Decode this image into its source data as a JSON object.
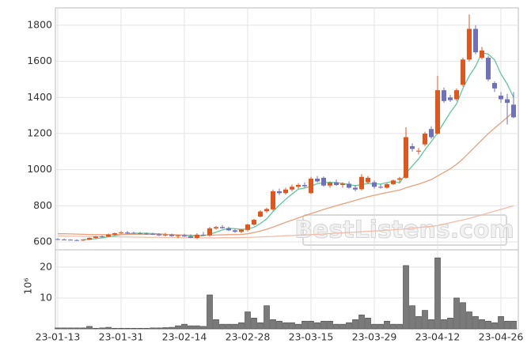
{
  "chart_data": [
    {
      "type": "candlestick",
      "open": [
        615,
        613,
        612,
        610,
        608,
        612,
        622,
        630,
        628,
        640,
        648,
        652,
        650,
        648,
        646,
        644,
        642,
        636,
        640,
        632,
        636,
        630,
        622,
        640,
        636,
        675,
        682,
        676,
        664,
        656,
        666,
        696,
        740,
        770,
        780,
        880,
        870,
        890,
        905,
        915,
        870,
        950,
        955,
        912,
        930,
        915,
        922,
        900,
        892,
        930,
        930,
        905,
        900,
        920,
        945,
        955,
        1130,
        1100,
        1140,
        1225,
        1200,
        1440,
        1400,
        1390,
        1470,
        1610,
        1780,
        1620,
        1620,
        1480,
        1410,
        1390,
        1360
      ],
      "high": [
        620,
        618,
        615,
        614,
        615,
        625,
        632,
        636,
        645,
        652,
        660,
        660,
        656,
        655,
        652,
        650,
        648,
        650,
        646,
        640,
        645,
        642,
        648,
        655,
        682,
        688,
        692,
        684,
        672,
        672,
        700,
        728,
        775,
        790,
        890,
        895,
        900,
        918,
        925,
        930,
        960,
        965,
        962,
        935,
        945,
        930,
        935,
        915,
        975,
        965,
        940,
        920,
        925,
        945,
        960,
        1235,
        1145,
        1120,
        1210,
        1240,
        1520,
        1455,
        1415,
        1450,
        1620,
        1860,
        1800,
        1680,
        1630,
        1490,
        1430,
        1420,
        1430
      ],
      "low": [
        610,
        610,
        608,
        605,
        605,
        610,
        618,
        624,
        626,
        636,
        644,
        646,
        644,
        642,
        640,
        638,
        632,
        630,
        628,
        620,
        628,
        620,
        615,
        632,
        630,
        668,
        672,
        660,
        650,
        648,
        658,
        690,
        736,
        760,
        772,
        860,
        862,
        880,
        895,
        900,
        865,
        930,
        905,
        900,
        910,
        900,
        895,
        880,
        885,
        920,
        895,
        895,
        895,
        915,
        930,
        950,
        1100,
        1085,
        1130,
        1170,
        1195,
        1370,
        1375,
        1380,
        1460,
        1600,
        1640,
        1610,
        1490,
        1430,
        1370,
        1250,
        1285
      ],
      "close": [
        613,
        612,
        610,
        608,
        612,
        622,
        630,
        628,
        640,
        648,
        652,
        650,
        648,
        646,
        644,
        642,
        636,
        640,
        632,
        636,
        630,
        622,
        640,
        636,
        675,
        682,
        676,
        664,
        656,
        668,
        696,
        722,
        768,
        782,
        880,
        870,
        890,
        905,
        915,
        908,
        950,
        935,
        912,
        928,
        915,
        922,
        900,
        890,
        960,
        955,
        905,
        900,
        920,
        940,
        952,
        1180,
        1115,
        1105,
        1200,
        1180,
        1440,
        1380,
        1385,
        1440,
        1610,
        1780,
        1650,
        1660,
        1500,
        1450,
        1390,
        1370,
        1290
      ],
      "up_color": "#e0561f",
      "down_color": "#6f72b8",
      "lines": [
        {
          "color": "#5fc99a",
          "values": [
            null,
            null,
            null,
            null,
            612,
            614,
            618,
            622,
            628,
            634,
            640,
            645,
            648,
            648,
            648,
            646,
            644,
            642,
            639,
            637,
            636,
            633,
            632,
            634,
            642,
            654,
            666,
            675,
            673,
            669,
            672,
            681,
            702,
            727,
            768,
            804,
            836,
            865,
            892,
            898,
            908,
            923,
            928,
            930,
            928,
            924,
            917,
            911,
            917,
            924,
            922,
            920,
            928,
            936,
            926,
            979,
            1021,
            1060,
            1110,
            1156,
            1204,
            1261,
            1317,
            1365,
            1451,
            1519,
            1573,
            1648,
            1640,
            1608,
            1530,
            1474,
            1400
          ]
        },
        {
          "color": "#e9a07c",
          "values": [
            645,
            645,
            644,
            643,
            642,
            641,
            640,
            640,
            640,
            640,
            640,
            641,
            642,
            642,
            642,
            642,
            641,
            640,
            640,
            639,
            638,
            637,
            636,
            636,
            637,
            638,
            639,
            640,
            640,
            641,
            645,
            652,
            660,
            670,
            682,
            695,
            708,
            720,
            733,
            745,
            757,
            768,
            780,
            790,
            800,
            810,
            820,
            830,
            840,
            850,
            858,
            866,
            873,
            880,
            887,
            900,
            910,
            920,
            932,
            945,
            965,
            985,
            1005,
            1030,
            1060,
            1095,
            1130,
            1165,
            1200,
            1230,
            1260,
            1290,
            1320
          ]
        },
        {
          "color": "#f2bcaa",
          "values": [
            632,
            632,
            631,
            631,
            630,
            630,
            629,
            629,
            628,
            628,
            627,
            627,
            626,
            626,
            625,
            625,
            625,
            624,
            624,
            624,
            623,
            623,
            623,
            622,
            622,
            622,
            623,
            623,
            623,
            624,
            624,
            626,
            627,
            629,
            630,
            632,
            634,
            635,
            637,
            638,
            640,
            642,
            644,
            646,
            648,
            650,
            652,
            654,
            656,
            658,
            660,
            662,
            665,
            667,
            670,
            672,
            676,
            679,
            683,
            686,
            690,
            698,
            706,
            714,
            722,
            730,
            740,
            750,
            760,
            770,
            780,
            790,
            800
          ]
        }
      ],
      "ylim": [
        556,
        1896
      ],
      "yticks": [
        600,
        800,
        1000,
        1200,
        1400,
        1600,
        1800
      ],
      "grid": true,
      "watermark": "BestListens.com"
    },
    {
      "type": "bar",
      "ylabel": "10⁶",
      "categories": [
        "23-01-13",
        null,
        null,
        null,
        null,
        null,
        null,
        null,
        null,
        null,
        "23-01-31",
        null,
        null,
        null,
        null,
        null,
        null,
        null,
        null,
        null,
        "23-02-14",
        null,
        null,
        null,
        null,
        null,
        null,
        null,
        null,
        null,
        "23-02-28",
        null,
        null,
        null,
        null,
        null,
        null,
        null,
        null,
        null,
        "23-03-15",
        null,
        null,
        null,
        null,
        null,
        null,
        null,
        null,
        null,
        "23-03-29",
        null,
        null,
        null,
        null,
        null,
        null,
        null,
        null,
        null,
        "23-04-12",
        null,
        null,
        null,
        null,
        null,
        null,
        null,
        null,
        null,
        "23-04-26",
        null,
        null
      ],
      "values": [
        0.3,
        0.3,
        0.3,
        0.3,
        0.3,
        0.8,
        0.2,
        0.3,
        0.5,
        0.2,
        0.2,
        0.2,
        0.2,
        0.2,
        0.2,
        0.3,
        0.3,
        0.4,
        0.5,
        1,
        1.5,
        1,
        1,
        0.8,
        11,
        3,
        1.5,
        1.5,
        1.5,
        2,
        5.5,
        3.5,
        2,
        7.5,
        3,
        2.5,
        2,
        2,
        1.5,
        2.5,
        2.5,
        2,
        2.5,
        2.5,
        1.5,
        1.5,
        2,
        3,
        4.5,
        3.5,
        1.5,
        1.5,
        2.5,
        1.5,
        1.5,
        20.5,
        7.5,
        4,
        6,
        3,
        23,
        3,
        3.5,
        10,
        8.5,
        5.5,
        4,
        3,
        2.5,
        2,
        4,
        2.5,
        2.5
      ],
      "color": "#7a7a7a",
      "ylim": [
        0,
        25.6
      ],
      "yticks": [
        10,
        20
      ],
      "grid": true
    }
  ]
}
